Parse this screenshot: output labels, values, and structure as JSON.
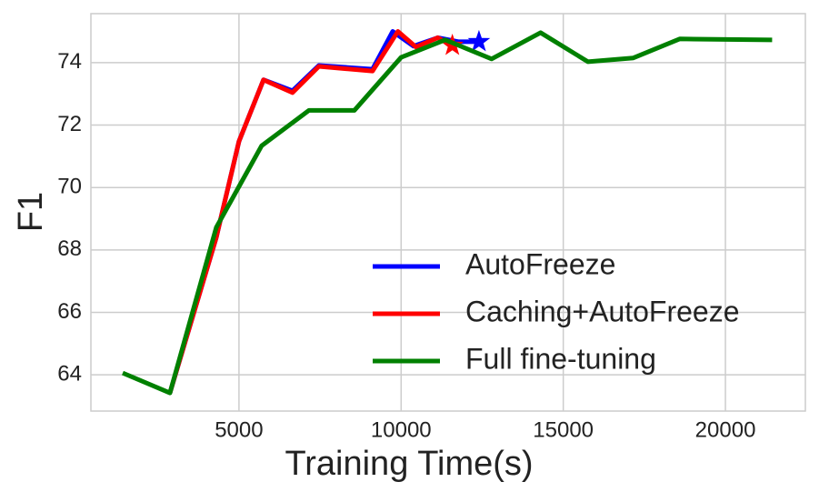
{
  "chart_data": {
    "type": "line",
    "xlabel": "Training Time(s)",
    "ylabel": "F1",
    "xlim": [
      434,
      22465
    ],
    "ylim": [
      62.84,
      75.57
    ],
    "xticks": [
      5000,
      10000,
      15000,
      20000
    ],
    "yticks": [
      64,
      66,
      68,
      70,
      72,
      74
    ],
    "grid": true,
    "legend_loc": "lower right",
    "series": [
      {
        "name": "AutoFreeze",
        "color": "#0000ff",
        "end_marker": "star",
        "x": [
          2871,
          4300,
          5000,
          5756,
          6650,
          7465,
          9118,
          9740,
          10380,
          11130,
          11780,
          12400
        ],
        "values": [
          63.42,
          68.4,
          71.48,
          73.45,
          73.1,
          73.91,
          73.79,
          75.0,
          74.53,
          74.8,
          74.67,
          74.67
        ]
      },
      {
        "name": "Caching+AutoFreeze",
        "color": "#ff0000",
        "end_marker": "star",
        "x": [
          2871,
          4300,
          5000,
          5756,
          6650,
          7465,
          9118,
          9900,
          10460,
          11130,
          11580
        ],
        "values": [
          63.42,
          68.4,
          71.48,
          73.45,
          73.04,
          73.88,
          73.73,
          75.0,
          74.5,
          74.8,
          74.55
        ]
      },
      {
        "name": "Full fine-tuning",
        "color": "#008000",
        "x": [
          1415,
          2871,
          4300,
          5700,
          7157,
          8557,
          10000,
          11360,
          12790,
          14300,
          15760,
          17160,
          18590,
          21440
        ],
        "values": [
          64.06,
          63.42,
          68.72,
          71.34,
          72.47,
          72.47,
          74.17,
          74.73,
          74.12,
          74.96,
          74.03,
          74.15,
          74.76,
          74.73
        ]
      }
    ]
  }
}
